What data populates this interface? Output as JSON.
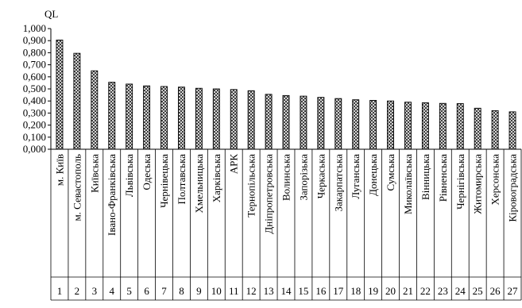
{
  "chart_data": {
    "type": "bar",
    "ylabel": "QL",
    "ylim": [
      0,
      1.0
    ],
    "yticks": [
      "0,000",
      "0,100",
      "0,200",
      "0,300",
      "0,400",
      "0,500",
      "0,600",
      "0,700",
      "0,800",
      "0,900",
      "1,000"
    ],
    "grid": false,
    "legend": "none",
    "bar_fill": "crosshatch",
    "categories": [
      "м. Київ",
      "м. Севастополь",
      "Київська",
      "Івано-Франківська",
      "Львівська",
      "Одеська",
      "Чернівецька",
      "Полтавська",
      "Хмельницька",
      "Харківська",
      "АРК",
      "Тернопільська",
      "Дніпропетровська",
      "Волинська",
      "Запорізька",
      "Черкаська",
      "Закарпатська",
      "Луганська",
      "Донецька",
      "Сумська",
      "Миколаївська",
      "Вінницька",
      "Рівненська",
      "Чернігівська",
      "Житомирська",
      "Херсонська",
      "Кіровоградська"
    ],
    "ranks": [
      "1",
      "2",
      "3",
      "4",
      "5",
      "6",
      "7",
      "8",
      "9",
      "10",
      "11",
      "12",
      "13",
      "14",
      "15",
      "16",
      "17",
      "18",
      "19",
      "20",
      "21",
      "22",
      "23",
      "24",
      "25",
      "26",
      "27"
    ],
    "values": [
      0.905,
      0.795,
      0.65,
      0.555,
      0.54,
      0.525,
      0.52,
      0.515,
      0.505,
      0.5,
      0.495,
      0.485,
      0.455,
      0.445,
      0.44,
      0.43,
      0.42,
      0.41,
      0.405,
      0.4,
      0.39,
      0.385,
      0.38,
      0.378,
      0.34,
      0.32,
      0.31
    ]
  }
}
